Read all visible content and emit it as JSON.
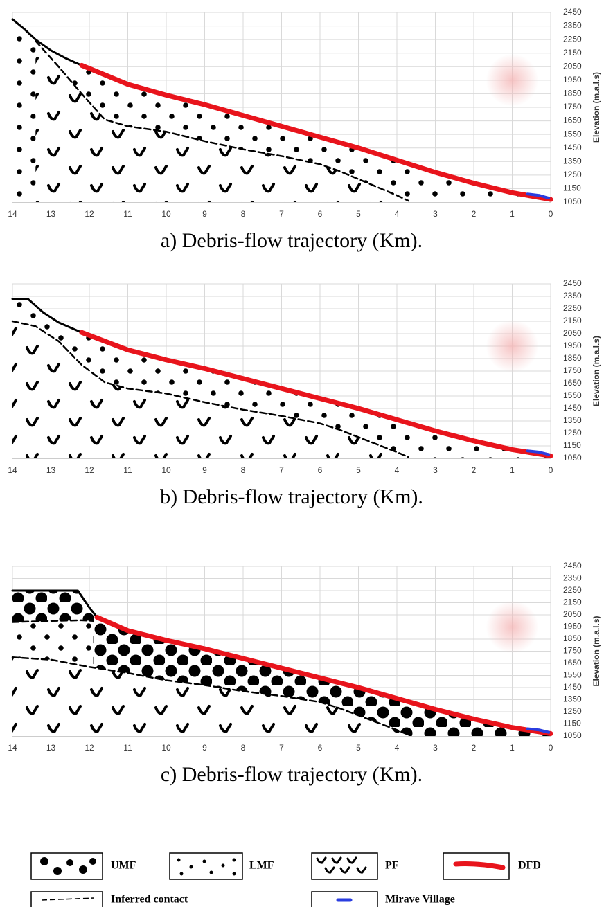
{
  "chart_data": [
    {
      "type": "line",
      "title": "a) Debris-flow trajectory (Km).",
      "y_label": "Elevation (m.a.l.s)",
      "xlim": [
        14,
        0
      ],
      "xticks": [
        14,
        13,
        12,
        11,
        10,
        9,
        8,
        7,
        6,
        5,
        4,
        3,
        2,
        1,
        0
      ],
      "ylim": [
        1050,
        2450
      ],
      "yticks": [
        1050,
        1150,
        1250,
        1350,
        1450,
        1550,
        1650,
        1750,
        1850,
        1950,
        2050,
        2150,
        2250,
        2350,
        2450
      ],
      "grid": true,
      "series": [
        {
          "color": "#000000",
          "x": [
            14,
            13.7,
            13.4,
            13,
            12.6,
            12.2
          ],
          "values": [
            2400,
            2330,
            2250,
            2170,
            2110,
            2060
          ]
        },
        {
          "color": "#e8141c",
          "x": [
            12.2,
            11,
            10,
            9,
            8,
            7,
            6,
            5,
            4,
            3,
            2,
            1,
            0
          ],
          "values": [
            2060,
            1920,
            1840,
            1770,
            1690,
            1610,
            1530,
            1450,
            1360,
            1270,
            1190,
            1120,
            1070
          ]
        },
        {
          "color": "#2a3de0",
          "x": [
            0.6,
            0.3,
            0.05
          ],
          "values": [
            1110,
            1100,
            1080
          ]
        },
        {
          "color": "#000000",
          "linestyle": "dashed",
          "x": [
            13.4,
            12.8,
            12.2,
            11.6,
            11,
            10,
            9,
            8,
            7,
            6,
            5.5,
            5,
            4.5,
            4,
            3.7
          ],
          "values": [
            2240,
            2050,
            1850,
            1660,
            1610,
            1570,
            1500,
            1440,
            1390,
            1330,
            1280,
            1220,
            1160,
            1100,
            1060
          ]
        }
      ]
    },
    {
      "type": "line",
      "title": "b) Debris-flow trajectory (Km).",
      "y_label": "Elevation (m.a.l.s)",
      "xlim": [
        14,
        0
      ],
      "xticks": [
        14,
        13,
        12,
        11,
        10,
        9,
        8,
        7,
        6,
        5,
        4,
        3,
        2,
        1,
        0
      ],
      "ylim": [
        1050,
        2450
      ],
      "yticks": [
        1050,
        1150,
        1250,
        1350,
        1450,
        1550,
        1650,
        1750,
        1850,
        1950,
        2050,
        2150,
        2250,
        2350,
        2450
      ],
      "grid": true,
      "series": [
        {
          "color": "#000000",
          "x": [
            14,
            13.6,
            13.2,
            12.8,
            12.2
          ],
          "values": [
            2330,
            2330,
            2220,
            2140,
            2060
          ]
        },
        {
          "color": "#e8141c",
          "x": [
            12.2,
            11,
            10,
            9,
            8,
            7,
            6,
            5,
            4,
            3,
            2,
            1,
            0
          ],
          "values": [
            2060,
            1920,
            1840,
            1770,
            1690,
            1610,
            1530,
            1450,
            1360,
            1270,
            1190,
            1120,
            1070
          ]
        },
        {
          "color": "#2a3de0",
          "x": [
            0.6,
            0.3,
            0.05
          ],
          "values": [
            1110,
            1100,
            1080
          ]
        },
        {
          "color": "#000000",
          "linestyle": "dashed",
          "x": [
            14,
            13.4,
            12.8,
            12.2,
            11.6,
            11,
            10,
            9,
            8,
            7,
            6,
            5.5,
            5,
            4.5,
            4,
            3.7
          ],
          "values": [
            2150,
            2110,
            1990,
            1800,
            1660,
            1610,
            1570,
            1500,
            1440,
            1390,
            1330,
            1280,
            1220,
            1160,
            1100,
            1060
          ]
        }
      ]
    },
    {
      "type": "line",
      "title": "c) Debris-flow trajectory (Km).",
      "y_label": "Elevation (m.a.l.s)",
      "xlim": [
        14,
        0
      ],
      "xticks": [
        14,
        13,
        12,
        11,
        10,
        9,
        8,
        7,
        6,
        5,
        4,
        3,
        2,
        1,
        0
      ],
      "ylim": [
        1050,
        2450
      ],
      "yticks": [
        1050,
        1150,
        1250,
        1350,
        1450,
        1550,
        1650,
        1750,
        1850,
        1950,
        2050,
        2150,
        2250,
        2350,
        2450
      ],
      "grid": true,
      "series": [
        {
          "color": "#000000",
          "x": [
            14,
            12.3,
            12,
            11.8
          ],
          "values": [
            2250,
            2250,
            2110,
            2030
          ]
        },
        {
          "color": "#e8141c",
          "x": [
            11.8,
            11,
            10,
            9,
            8,
            7,
            6,
            5,
            4,
            3,
            2,
            1,
            0
          ],
          "values": [
            2030,
            1920,
            1840,
            1770,
            1690,
            1610,
            1530,
            1450,
            1360,
            1270,
            1190,
            1120,
            1070
          ]
        },
        {
          "color": "#2a3de0",
          "x": [
            0.6,
            0.3,
            0.05
          ],
          "values": [
            1110,
            1100,
            1080
          ]
        },
        {
          "color": "#000000",
          "linestyle": "dashed",
          "x": [
            14,
            13,
            12.2,
            11.9
          ],
          "values": [
            1990,
            2000,
            2005,
            2000
          ]
        },
        {
          "color": "#000000",
          "linestyle": "dashed",
          "x": [
            14,
            13,
            12,
            11,
            10,
            9,
            8,
            7,
            6,
            5.5,
            5,
            4.5,
            4,
            3.7
          ],
          "values": [
            1700,
            1680,
            1620,
            1570,
            1510,
            1470,
            1420,
            1380,
            1330,
            1280,
            1220,
            1160,
            1100,
            1060
          ]
        }
      ]
    }
  ],
  "legend": [
    "UMF",
    "LMF",
    "PF",
    "DFD",
    "Inferred contact",
    "Mirave Village"
  ]
}
